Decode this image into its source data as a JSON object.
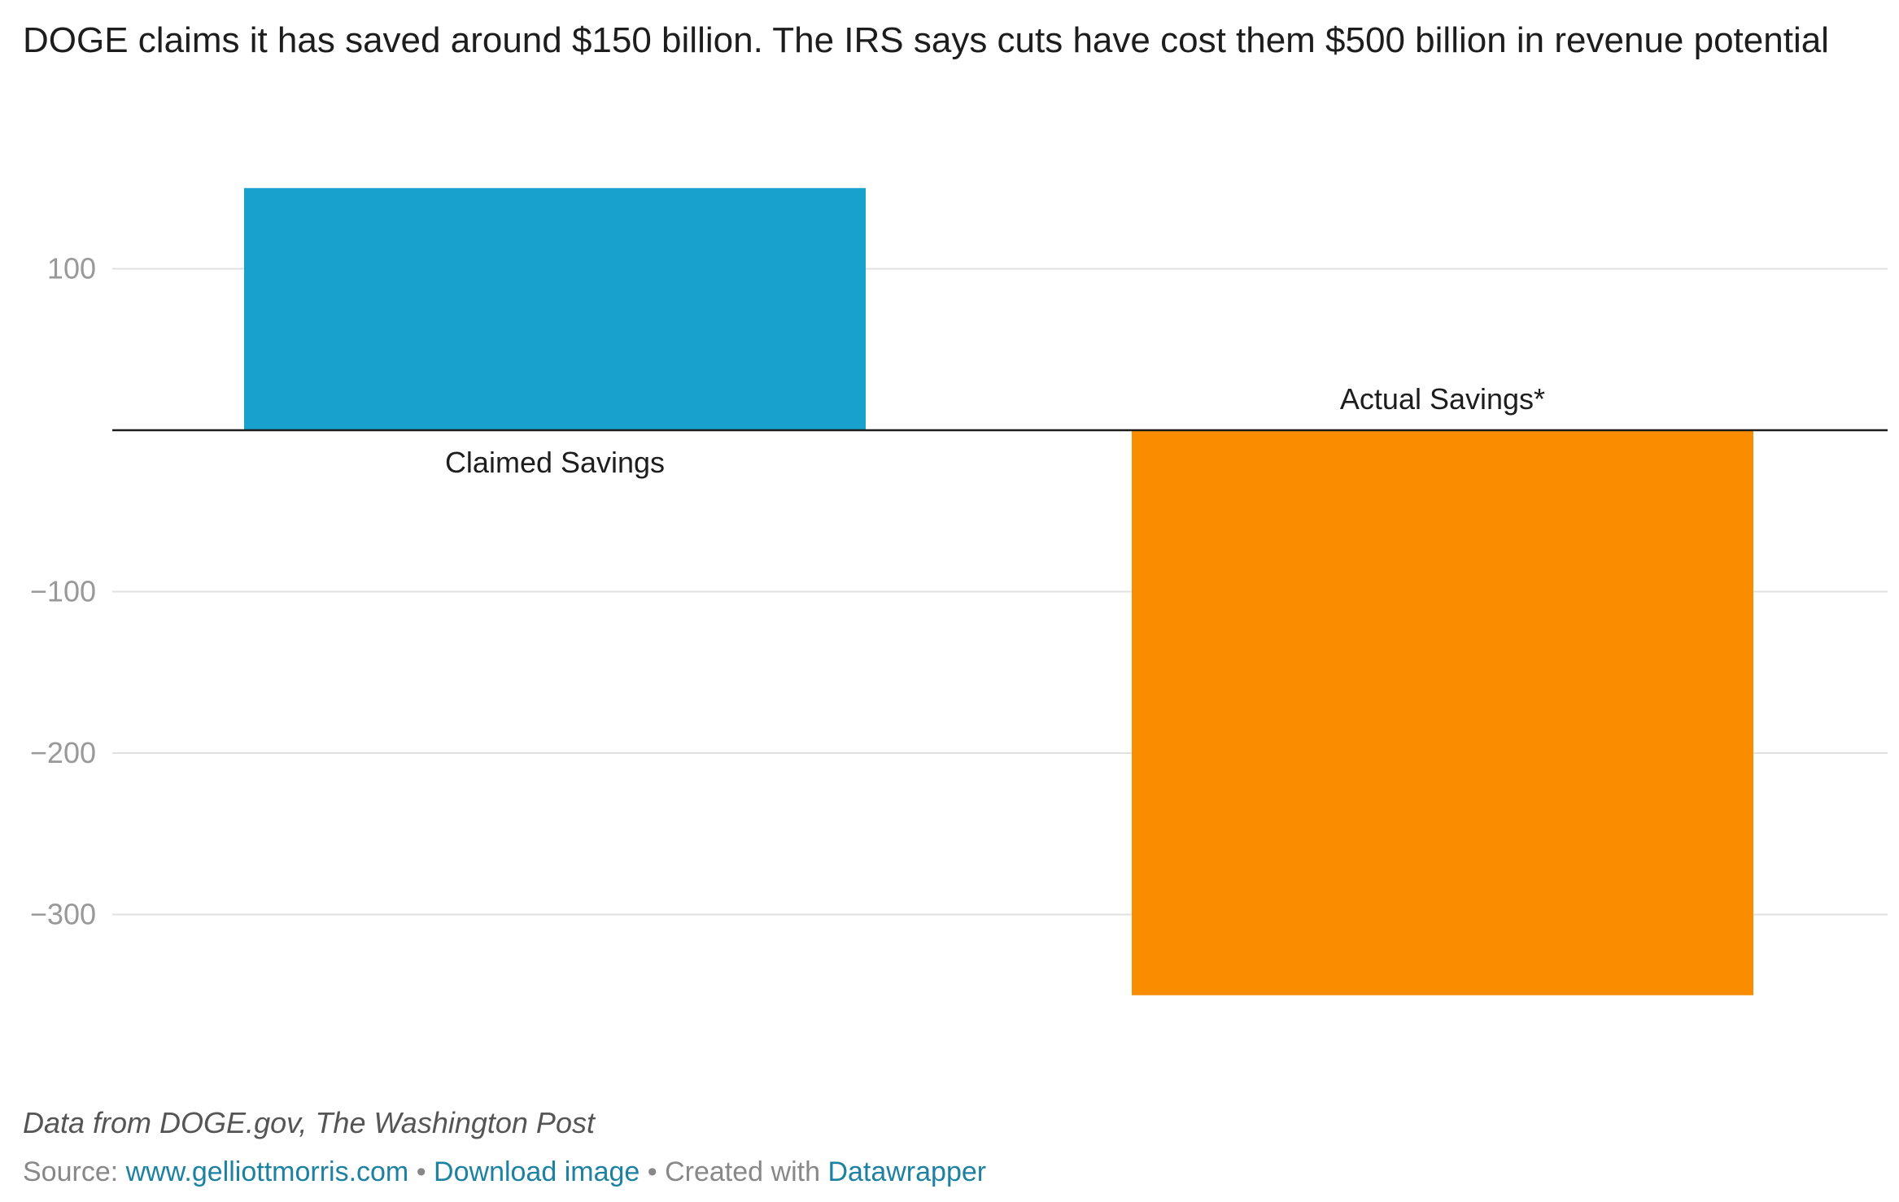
{
  "title": "DOGE claims it has saved around $150 billion. The IRS says cuts have cost them $500 billion in revenue potential",
  "chart_data": {
    "type": "bar",
    "categories": [
      "Claimed Savings",
      "Actual Savings*"
    ],
    "values": [
      150,
      -350
    ],
    "colors": [
      "#18a1cd",
      "#fa8c00"
    ],
    "yticks": [
      100,
      -100,
      -200,
      -300
    ],
    "ytick_labels": [
      "100",
      "−100",
      "−200",
      "−300"
    ],
    "ylim": [
      -390,
      175
    ],
    "grid": true,
    "xlabel": "",
    "ylabel": ""
  },
  "note": "Data from DOGE.gov, The Washington Post",
  "footer": {
    "source_label": "Source: ",
    "source_link": "www.gelliottmorris.com",
    "sep1": " • ",
    "download": "Download image",
    "sep2": " • Created with ",
    "datawrapper": "Datawrapper"
  }
}
